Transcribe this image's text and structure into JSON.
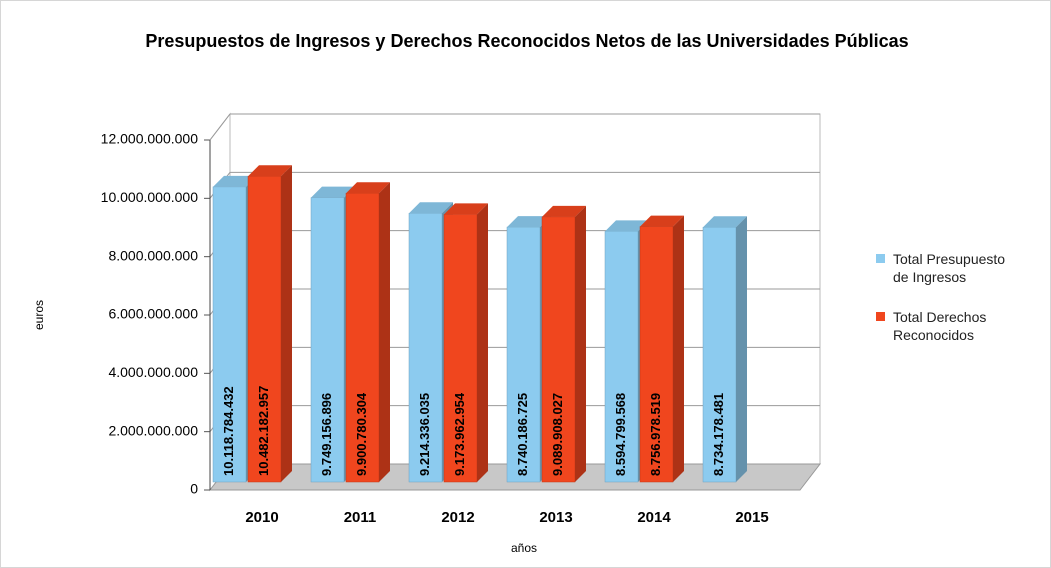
{
  "chart_data": {
    "type": "bar3d",
    "title": "Presupuestos de Ingresos y Derechos Reconocidos Netos de las Universidades Públicas",
    "x_label": "años",
    "y_label": "euros",
    "categories": [
      "2010",
      "2011",
      "2012",
      "2013",
      "2014",
      "2015"
    ],
    "series": [
      {
        "name": "Total Presupuesto de Ingresos",
        "color": "#8ccbef",
        "values": [
          10118784432,
          9749156896,
          9214336035,
          8740186725,
          8594799568,
          8734178481
        ],
        "value_labels": [
          "10.118.784.432",
          "9.749.156.896",
          "9.214.336.035",
          "8.740.186.725",
          "8.594.799.568",
          "8.734.178.481"
        ]
      },
      {
        "name": "Total Derechos Reconocidos",
        "color": "#f0461e",
        "values": [
          10482182957,
          9900780304,
          9173962954,
          9089908027,
          8756978519,
          null
        ],
        "value_labels": [
          "10.482.182.957",
          "9.900.780.304",
          "9.173.962.954",
          "9.089.908.027",
          "8.756.978.519",
          null
        ]
      }
    ],
    "ylim": [
      0,
      12000000000
    ],
    "yticks": [
      0,
      {
        "value": 2000000000,
        "label": "2.000.000.000"
      },
      {
        "value": 4000000000,
        "label": "4.000.000.000"
      },
      {
        "value": 6000000000,
        "label": "6.000.000.000"
      },
      {
        "value": 8000000000,
        "label": "8.000.000.000"
      },
      {
        "value": 10000000000,
        "label": "10.000.000.000"
      },
      {
        "value": 12000000000,
        "label": "12.000.000.000"
      }
    ],
    "grid": true,
    "legend": "right"
  }
}
